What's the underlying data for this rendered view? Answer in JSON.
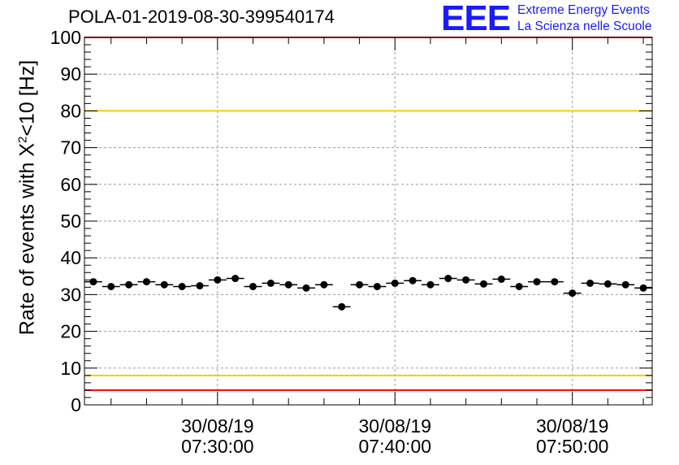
{
  "chart_data": {
    "type": "scatter",
    "title": "POLA-01-2019-08-30-399540174",
    "ylabel_prefix": "Rate of events with X",
    "ylabel_sup": "2",
    "ylabel_suffix": "<10 [Hz]",
    "ylim": [
      0,
      100
    ],
    "yticks": [
      "0",
      "10",
      "20",
      "30",
      "40",
      "50",
      "60",
      "70",
      "80",
      "90",
      "100"
    ],
    "xticks": [
      {
        "date": "30/08/19",
        "time": "07:30:00"
      },
      {
        "date": "30/08/19",
        "time": "07:40:00"
      },
      {
        "date": "30/08/19",
        "time": "07:50:00"
      }
    ],
    "grid": true,
    "reference_lines": [
      {
        "value": 80,
        "color": "#f0d000"
      },
      {
        "value": 8,
        "color": "#f0d000"
      },
      {
        "value": 4,
        "color": "#ff0000"
      },
      {
        "value": 100,
        "color": "#ff0000"
      }
    ],
    "series": [
      {
        "marker_color": "#000000",
        "points": [
          {
            "time": "07:23:00",
            "value": 33.5
          },
          {
            "time": "07:24:00",
            "value": 32.2
          },
          {
            "time": "07:25:00",
            "value": 32.7
          },
          {
            "time": "07:26:00",
            "value": 33.5
          },
          {
            "time": "07:27:00",
            "value": 32.7
          },
          {
            "time": "07:28:00",
            "value": 32.2
          },
          {
            "time": "07:29:00",
            "value": 32.4
          },
          {
            "time": "07:30:00",
            "value": 34.0
          },
          {
            "time": "07:31:00",
            "value": 34.4
          },
          {
            "time": "07:32:00",
            "value": 32.2
          },
          {
            "time": "07:33:00",
            "value": 33.1
          },
          {
            "time": "07:34:00",
            "value": 32.7
          },
          {
            "time": "07:35:00",
            "value": 31.8
          },
          {
            "time": "07:36:00",
            "value": 32.7
          },
          {
            "time": "07:37:00",
            "value": 26.7
          },
          {
            "time": "07:38:00",
            "value": 32.7
          },
          {
            "time": "07:39:00",
            "value": 32.2
          },
          {
            "time": "07:40:00",
            "value": 33.1
          },
          {
            "time": "07:41:00",
            "value": 33.8
          },
          {
            "time": "07:42:00",
            "value": 32.7
          },
          {
            "time": "07:43:00",
            "value": 34.4
          },
          {
            "time": "07:44:00",
            "value": 34.0
          },
          {
            "time": "07:45:00",
            "value": 32.9
          },
          {
            "time": "07:46:00",
            "value": 34.2
          },
          {
            "time": "07:47:00",
            "value": 32.2
          },
          {
            "time": "07:48:00",
            "value": 33.5
          },
          {
            "time": "07:49:00",
            "value": 33.5
          },
          {
            "time": "07:50:00",
            "value": 30.4
          },
          {
            "time": "07:51:00",
            "value": 33.1
          },
          {
            "time": "07:52:00",
            "value": 32.9
          },
          {
            "time": "07:53:00",
            "value": 32.7
          },
          {
            "time": "07:54:00",
            "value": 31.8
          }
        ]
      }
    ]
  },
  "logo": {
    "mark": "EEE",
    "line1": "Extreme Energy Events",
    "line2": "La Scienza nelle Scuole"
  }
}
